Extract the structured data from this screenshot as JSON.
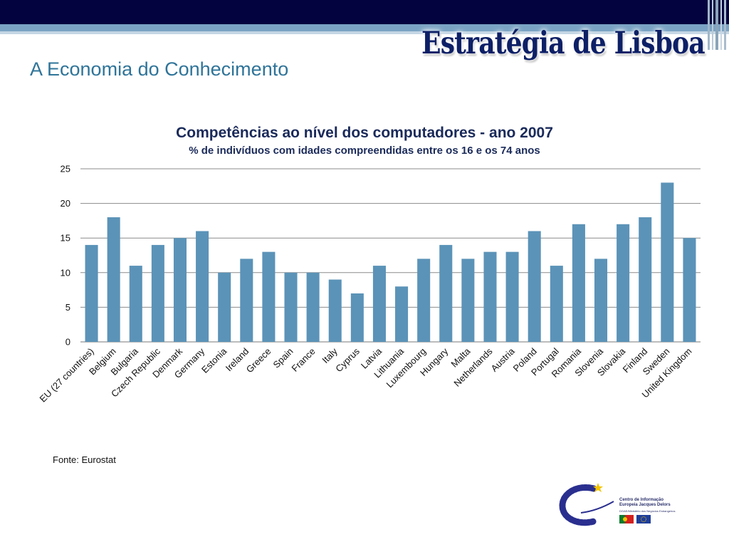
{
  "header": {
    "brand": "Estratégia de Lisboa",
    "title": "A Economia do Conhecimento"
  },
  "chart_data": {
    "type": "bar",
    "title": "Competências ao nível dos computadores - ano 2007",
    "subtitle": "% de indivíduos com idades compreendidas entre os 16 e os 74 anos",
    "categories": [
      "EU (27 countries)",
      "Belgium",
      "Bulgaria",
      "Czech Republic",
      "Denmark",
      "Germany",
      "Estonia",
      "Ireland",
      "Greece",
      "Spain",
      "France",
      "Italy",
      "Cyprus",
      "Latvia",
      "Lithuania",
      "Luxembourg",
      "Hungary",
      "Malta",
      "Netherlands",
      "Austria",
      "Poland",
      "Portugal",
      "Romania",
      "Slovenia",
      "Slovakia",
      "Finland",
      "Sweden",
      "United Kingdom"
    ],
    "values": [
      14,
      18,
      11,
      14,
      15,
      16,
      10,
      12,
      13,
      10,
      10,
      9,
      7,
      11,
      8,
      12,
      14,
      12,
      13,
      13,
      16,
      11,
      17,
      12,
      17,
      18,
      23,
      15
    ],
    "yticks": [
      0,
      5,
      10,
      15,
      20,
      25
    ],
    "ylim": [
      0,
      25
    ],
    "grid": true,
    "legend": "none",
    "bar_color": "#5b93b8"
  },
  "footer": {
    "source": "Fonte: Eurostat",
    "logo_line1": "Centro de Informação",
    "logo_line2": "Europeia Jacques Delors",
    "logo_line3": "DGAE/Ministério dos Negócios Estrangeiros"
  },
  "colors": {
    "header_bar": "#03033f",
    "title_text": "#2f7499",
    "brand_text": "#0d1f66"
  }
}
